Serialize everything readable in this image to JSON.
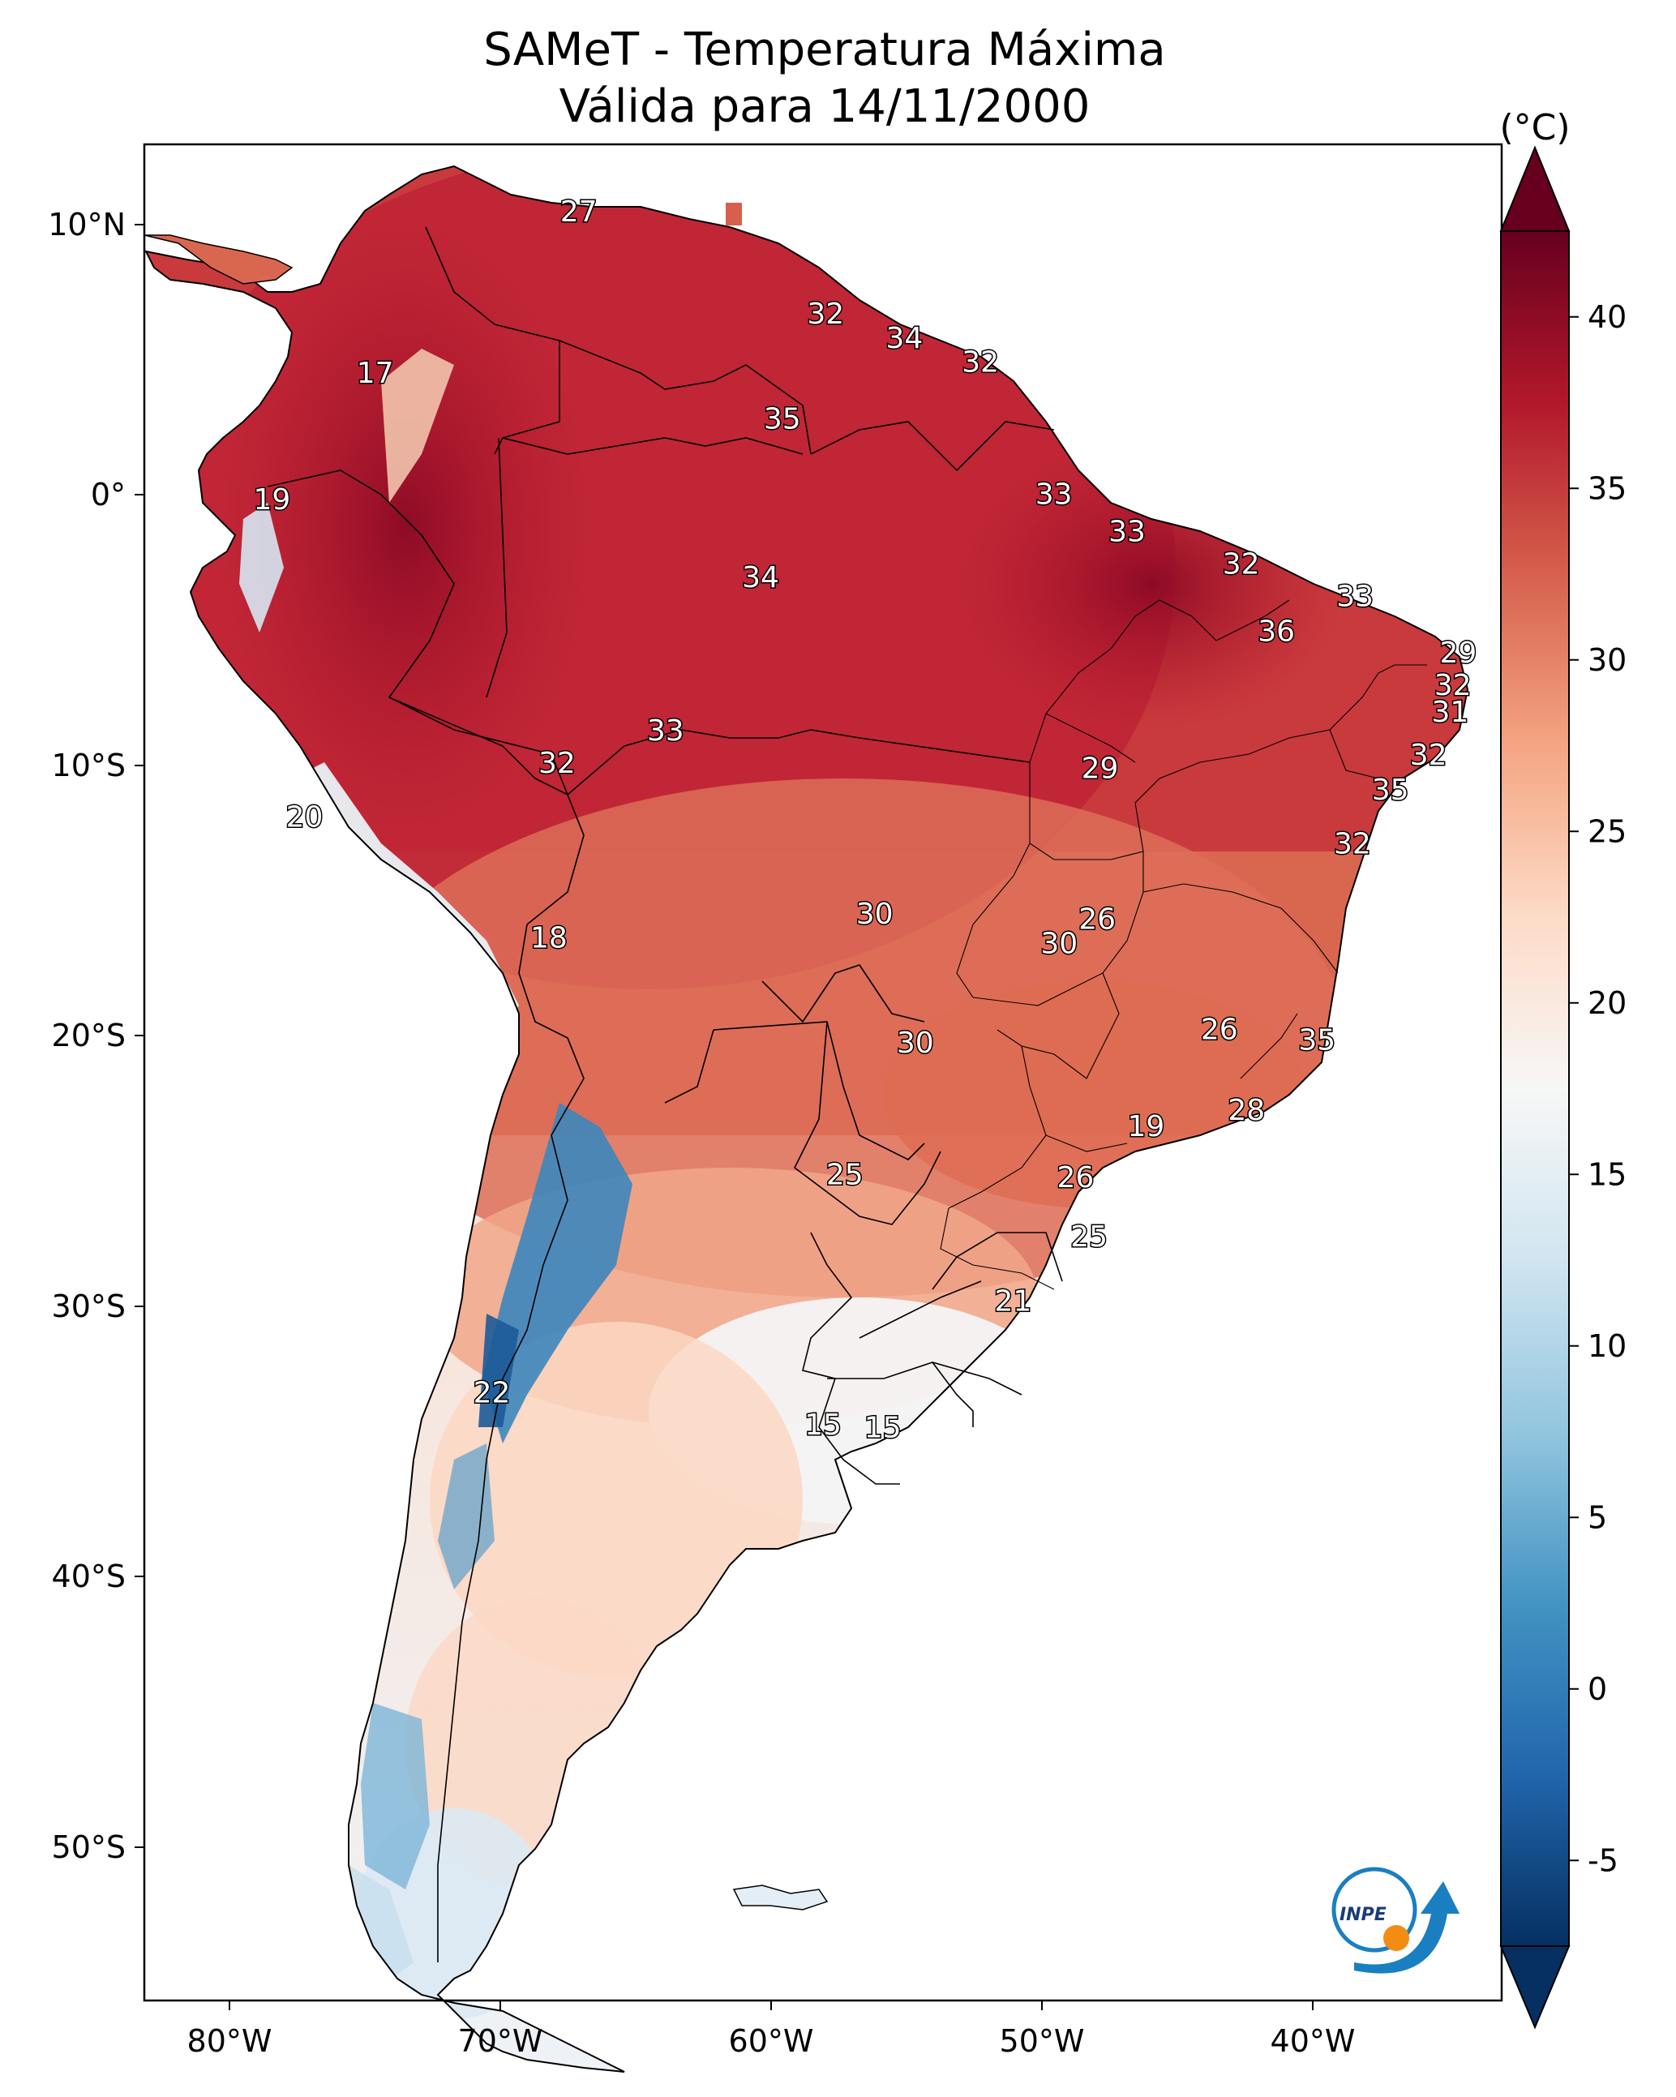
{
  "title": {
    "line1": "SAMeT - Temperatura Máxima",
    "line2": "Válida para 14/11/2000"
  },
  "map": {
    "lon_labels": [
      "80°W",
      "70°W",
      "60°W",
      "50°W",
      "40°W"
    ],
    "lat_labels": [
      "10°N",
      "0°",
      "10°S",
      "20°S",
      "30°S",
      "40°S",
      "50°S"
    ],
    "lon_values": [
      -80,
      -70,
      -60,
      -50,
      -40
    ],
    "lat_values": [
      10,
      0,
      -10,
      -20,
      -30,
      -40,
      -50
    ],
    "extent": {
      "lon_min": -83,
      "lon_max": -33,
      "lat_min": -56,
      "lat_max": 13
    }
  },
  "colorbar": {
    "units": "(°C)",
    "tick_labels": [
      "40",
      "35",
      "30",
      "25",
      "20",
      "15",
      "10",
      "5",
      "0",
      "-5"
    ],
    "tick_values": [
      40,
      35,
      30,
      25,
      20,
      15,
      10,
      5,
      0,
      -5
    ],
    "colors": [
      "#67001f",
      "#b2182b",
      "#d6604d",
      "#f4a582",
      "#fddbc7",
      "#f7f7f7",
      "#d1e5f0",
      "#92c5de",
      "#4393c3",
      "#2166ac",
      "#053061"
    ]
  },
  "station_labels": [
    {
      "text": "27",
      "lon": -67,
      "lat": 10.5
    },
    {
      "text": "17",
      "lon": -74.5,
      "lat": 4.5
    },
    {
      "text": "32",
      "lon": -57.9,
      "lat": 6.7
    },
    {
      "text": "34",
      "lon": -55,
      "lat": 5.8
    },
    {
      "text": "32",
      "lon": -52.2,
      "lat": 4.9
    },
    {
      "text": "35",
      "lon": -59.5,
      "lat": 2.8
    },
    {
      "text": "19",
      "lon": -78.3,
      "lat": -0.2
    },
    {
      "text": "33",
      "lon": -49.5,
      "lat": 0
    },
    {
      "text": "33",
      "lon": -46.8,
      "lat": -1.4
    },
    {
      "text": "32",
      "lon": -42.6,
      "lat": -2.6
    },
    {
      "text": "33",
      "lon": -38.4,
      "lat": -3.8
    },
    {
      "text": "34",
      "lon": -60.3,
      "lat": -3.1
    },
    {
      "text": "36",
      "lon": -41.3,
      "lat": -5.1
    },
    {
      "text": "29",
      "lon": -34.6,
      "lat": -5.9
    },
    {
      "text": "32",
      "lon": -34.8,
      "lat": -7.1
    },
    {
      "text": "31",
      "lon": -34.9,
      "lat": -8.1
    },
    {
      "text": "33",
      "lon": -63.8,
      "lat": -8.8
    },
    {
      "text": "32",
      "lon": -67.8,
      "lat": -10
    },
    {
      "text": "32",
      "lon": -35.7,
      "lat": -9.7
    },
    {
      "text": "29",
      "lon": -47.8,
      "lat": -10.2
    },
    {
      "text": "35",
      "lon": -37.1,
      "lat": -11
    },
    {
      "text": "20",
      "lon": -77.1,
      "lat": -12
    },
    {
      "text": "32",
      "lon": -38.5,
      "lat": -13
    },
    {
      "text": "30",
      "lon": -56.1,
      "lat": -15.6
    },
    {
      "text": "26",
      "lon": -47.9,
      "lat": -15.8
    },
    {
      "text": "30",
      "lon": -49.3,
      "lat": -16.7
    },
    {
      "text": "18",
      "lon": -68.1,
      "lat": -16.5
    },
    {
      "text": "26",
      "lon": -43.4,
      "lat": -19.9
    },
    {
      "text": "35",
      "lon": -39.8,
      "lat": -20.3
    },
    {
      "text": "30",
      "lon": -54.6,
      "lat": -20.4
    },
    {
      "text": "28",
      "lon": -42.4,
      "lat": -22.9
    },
    {
      "text": "19",
      "lon": -46.1,
      "lat": -23.5
    },
    {
      "text": "25",
      "lon": -57.2,
      "lat": -25.3
    },
    {
      "text": "26",
      "lon": -48.7,
      "lat": -25.4
    },
    {
      "text": "25",
      "lon": -48.2,
      "lat": -27.6
    },
    {
      "text": "21",
      "lon": -51,
      "lat": -30
    },
    {
      "text": "22",
      "lon": -70.2,
      "lat": -33.4
    },
    {
      "text": "15",
      "lon": -58,
      "lat": -34.6
    },
    {
      "text": "15",
      "lon": -55.8,
      "lat": -34.7
    }
  ],
  "logo": {
    "text": "INPE"
  }
}
